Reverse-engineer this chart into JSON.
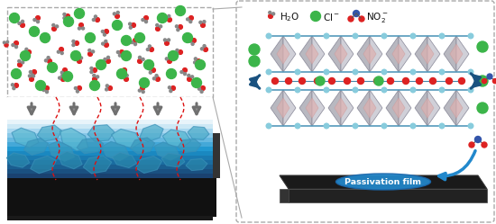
{
  "fig_width": 5.5,
  "fig_height": 2.49,
  "dpi": 100,
  "bg_color": "#ffffff",
  "passivation_text": "Passivation film",
  "green_color": "#3cb54a",
  "red_color": "#e0281a",
  "gray_color": "#888888",
  "blue_color": "#2a6fa8",
  "light_blue_top": "#d8eef8",
  "light_blue_mid": "#7ec8e3",
  "light_blue_bot": "#40a8d0",
  "dark_blue": "#1a5280",
  "cyan_dot": "#88ccdd",
  "ldh_face": "#e8e0d8",
  "ldh_edge": "#a0a0b0",
  "ldh_pink": "#e8b0b0",
  "black": "#111111",
  "arrow_gray": "#808080",
  "dashed_color": "#aaaaaa",
  "water_O": "#dd2222",
  "water_H": "#888888",
  "no2_N": "#3355aa",
  "film_blue": "#2288cc"
}
